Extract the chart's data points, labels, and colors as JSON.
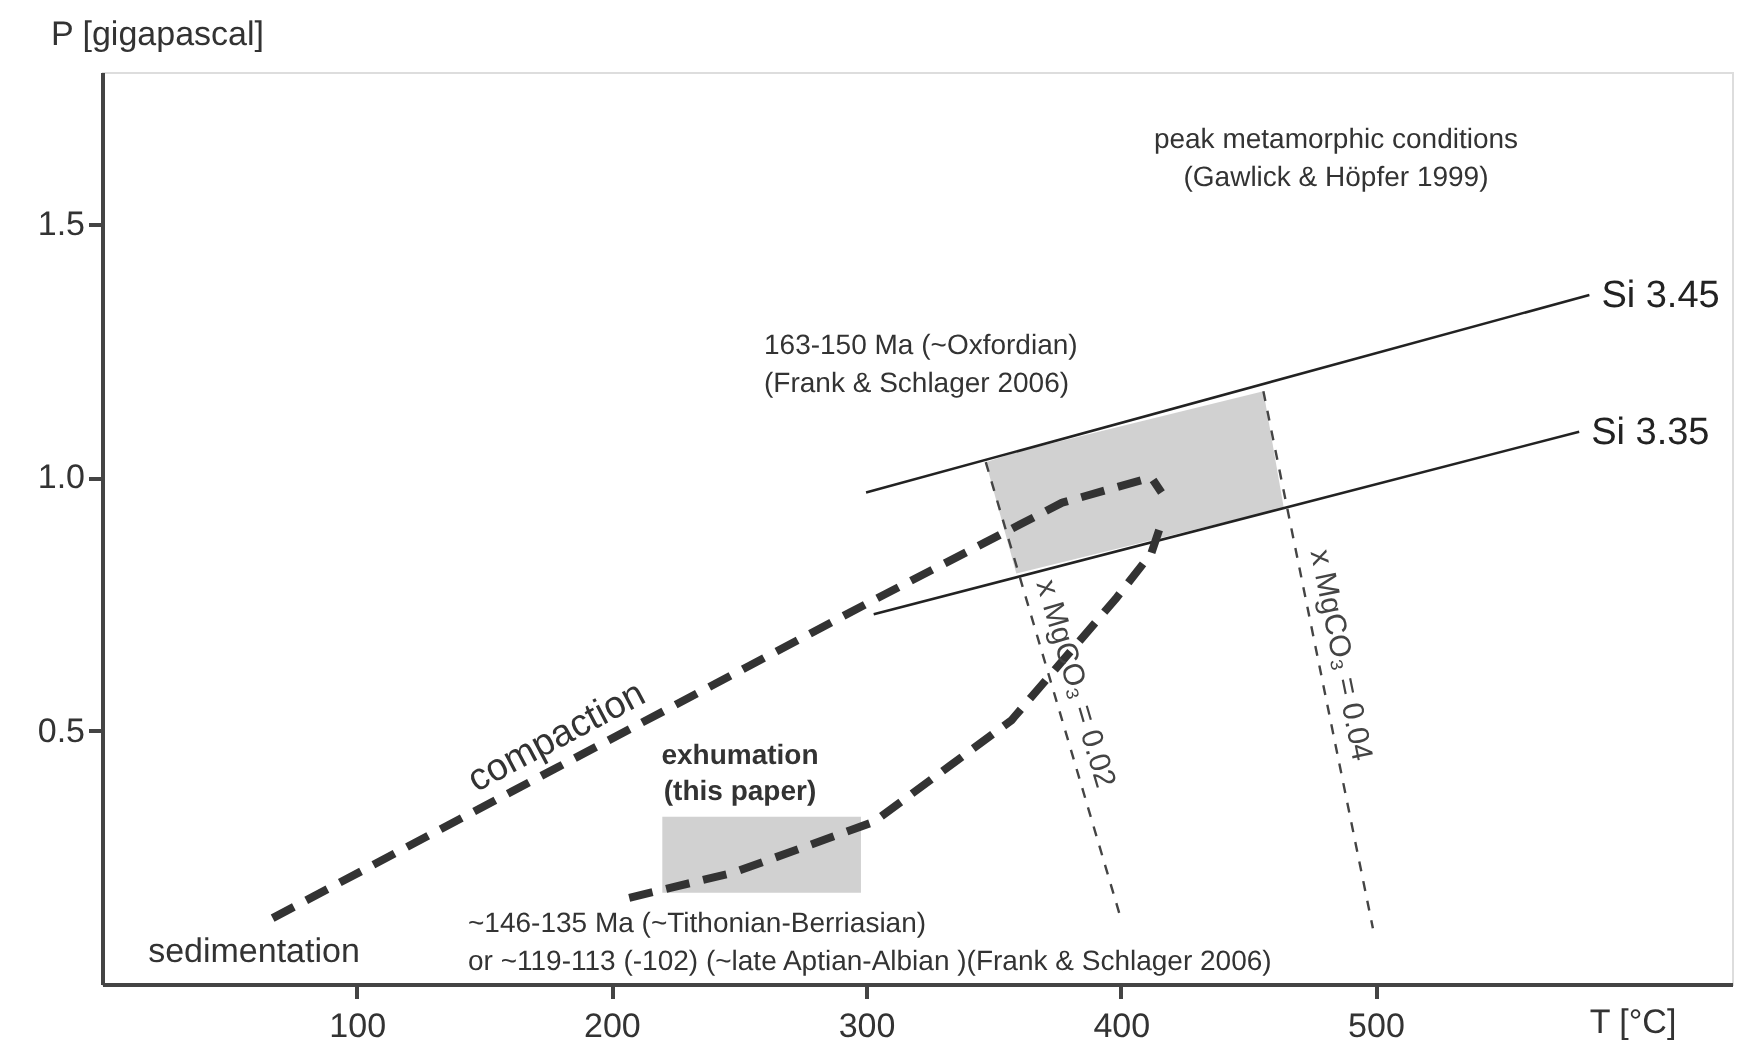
{
  "chart_data": {
    "type": "line",
    "xlabel": "T [°C]",
    "ylabel": "P [gigapascal]",
    "xlim": [
      0,
      640
    ],
    "ylim": [
      0,
      1.8
    ],
    "xticks": [
      100,
      200,
      300,
      400,
      500
    ],
    "yticks": [
      0.5,
      {
        "value": 1.0,
        "label": "1.0"
      },
      1.5
    ],
    "grid": false,
    "series": [
      {
        "type": "line",
        "color": "#999999",
        "x": [
          347,
          359,
          456,
          464
        ],
        "values": [
          null,
          null,
          null,
          null
        ],
        "upper": [
          1.03,
          1.05,
          1.17,
          0.94
        ],
        "lower": [
          1.03,
          0.81,
          0.93,
          0.94
        ]
      },
      {
        "type": "line",
        "color": "#999999",
        "x": [
          220,
          298
        ],
        "values": [
          null,
          null
        ],
        "upper": [
          0.33,
          0.33
        ],
        "lower": [
          0.18,
          0.18
        ]
      },
      {
        "name": "Si 3.45",
        "type": "line",
        "line_style": "solid",
        "color": "#222222",
        "x": [
          300,
          584
        ],
        "values": [
          0.97,
          1.36
        ]
      },
      {
        "name": "Si 3.35",
        "type": "line",
        "line_style": "solid",
        "color": "#222222",
        "x": [
          303,
          580
        ],
        "values": [
          0.73,
          1.09
        ]
      },
      {
        "name": "compaction",
        "type": "line",
        "line_style": "dashed",
        "color": "#333333",
        "x": [
          67,
          300,
          377,
          412,
          416
        ],
        "values": [
          0.13,
          0.75,
          0.95,
          1.0,
          0.97
        ]
      },
      {
        "line_style": "dashed",
        "color": "#333333",
        "x": [
          207,
          248,
          303,
          357,
          398,
          412,
          416
        ],
        "values": [
          0.17,
          0.22,
          0.32,
          0.52,
          0.76,
          0.85,
          0.91
        ]
      },
      {
        "name": "x MgCO₃ = 0.02",
        "type": "line",
        "line_style": "dotted",
        "color": "#444444",
        "x": [
          347,
          400
        ],
        "values": [
          1.03,
          0.13
        ]
      },
      {
        "name": "x MgCO₃ = 0.04",
        "type": "line",
        "line_style": "dotted",
        "color": "#444444",
        "x": [
          456,
          499
        ],
        "values": [
          1.17,
          0.11
        ]
      }
    ],
    "annotations": [
      "peak metamorphic conditions",
      "(Gawlick & Höpfer 1999)",
      "163-150 Ma (~Oxfordian)",
      "(Frank & Schlager 2006)",
      "exhumation",
      "(this paper)",
      "sedimentation",
      "~146-135 Ma (~Tithonian-Berriasian)",
      "or ~119-113 (-102) (~late Aptian-Albian )(Frank & Schlager 2006)"
    ]
  }
}
